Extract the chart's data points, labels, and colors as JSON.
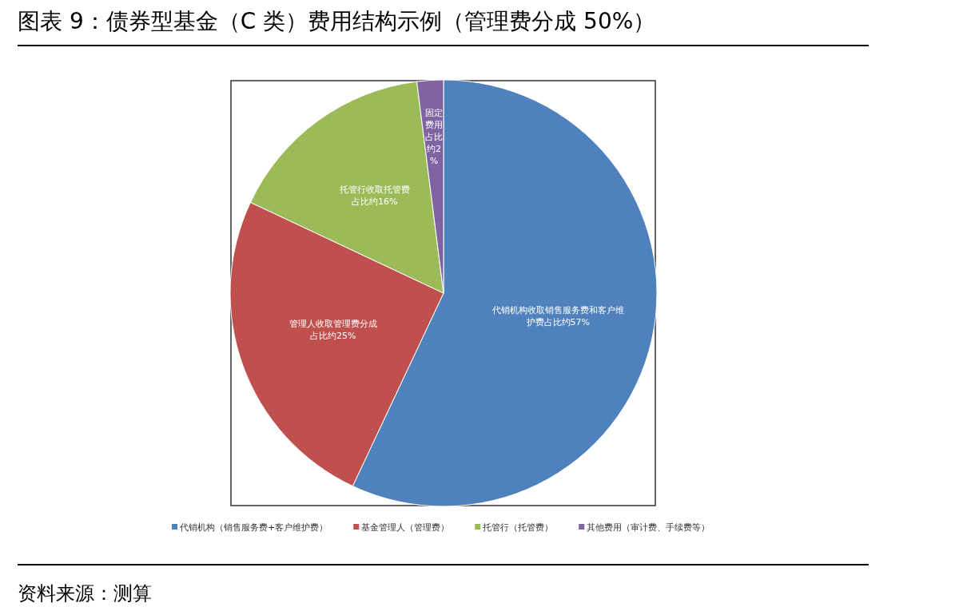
{
  "chart_data": {
    "type": "pie",
    "title": "图表 9：债券型基金（C 类）费用结构示例（管理费分成 50%）",
    "categories": [
      "代销机构（销售服务费+客户维护费）",
      "基金管理人（管理费）",
      "托管行（托管费）",
      "其他费用（审计费、手续费等）"
    ],
    "values": [
      57,
      25,
      16,
      2
    ],
    "colors": [
      "#4f81bd",
      "#c0504d",
      "#9bbb59",
      "#8064a2"
    ],
    "value_labels": [
      "代销机构收取销售服务费和客户维护费占比约57%",
      "管理人收取管理费分成占比约25%",
      "托管行收取托管费占比约16%",
      "固定费用占比约2%"
    ],
    "legend": "bottom",
    "annotations": [
      "资料来源：测算"
    ]
  }
}
